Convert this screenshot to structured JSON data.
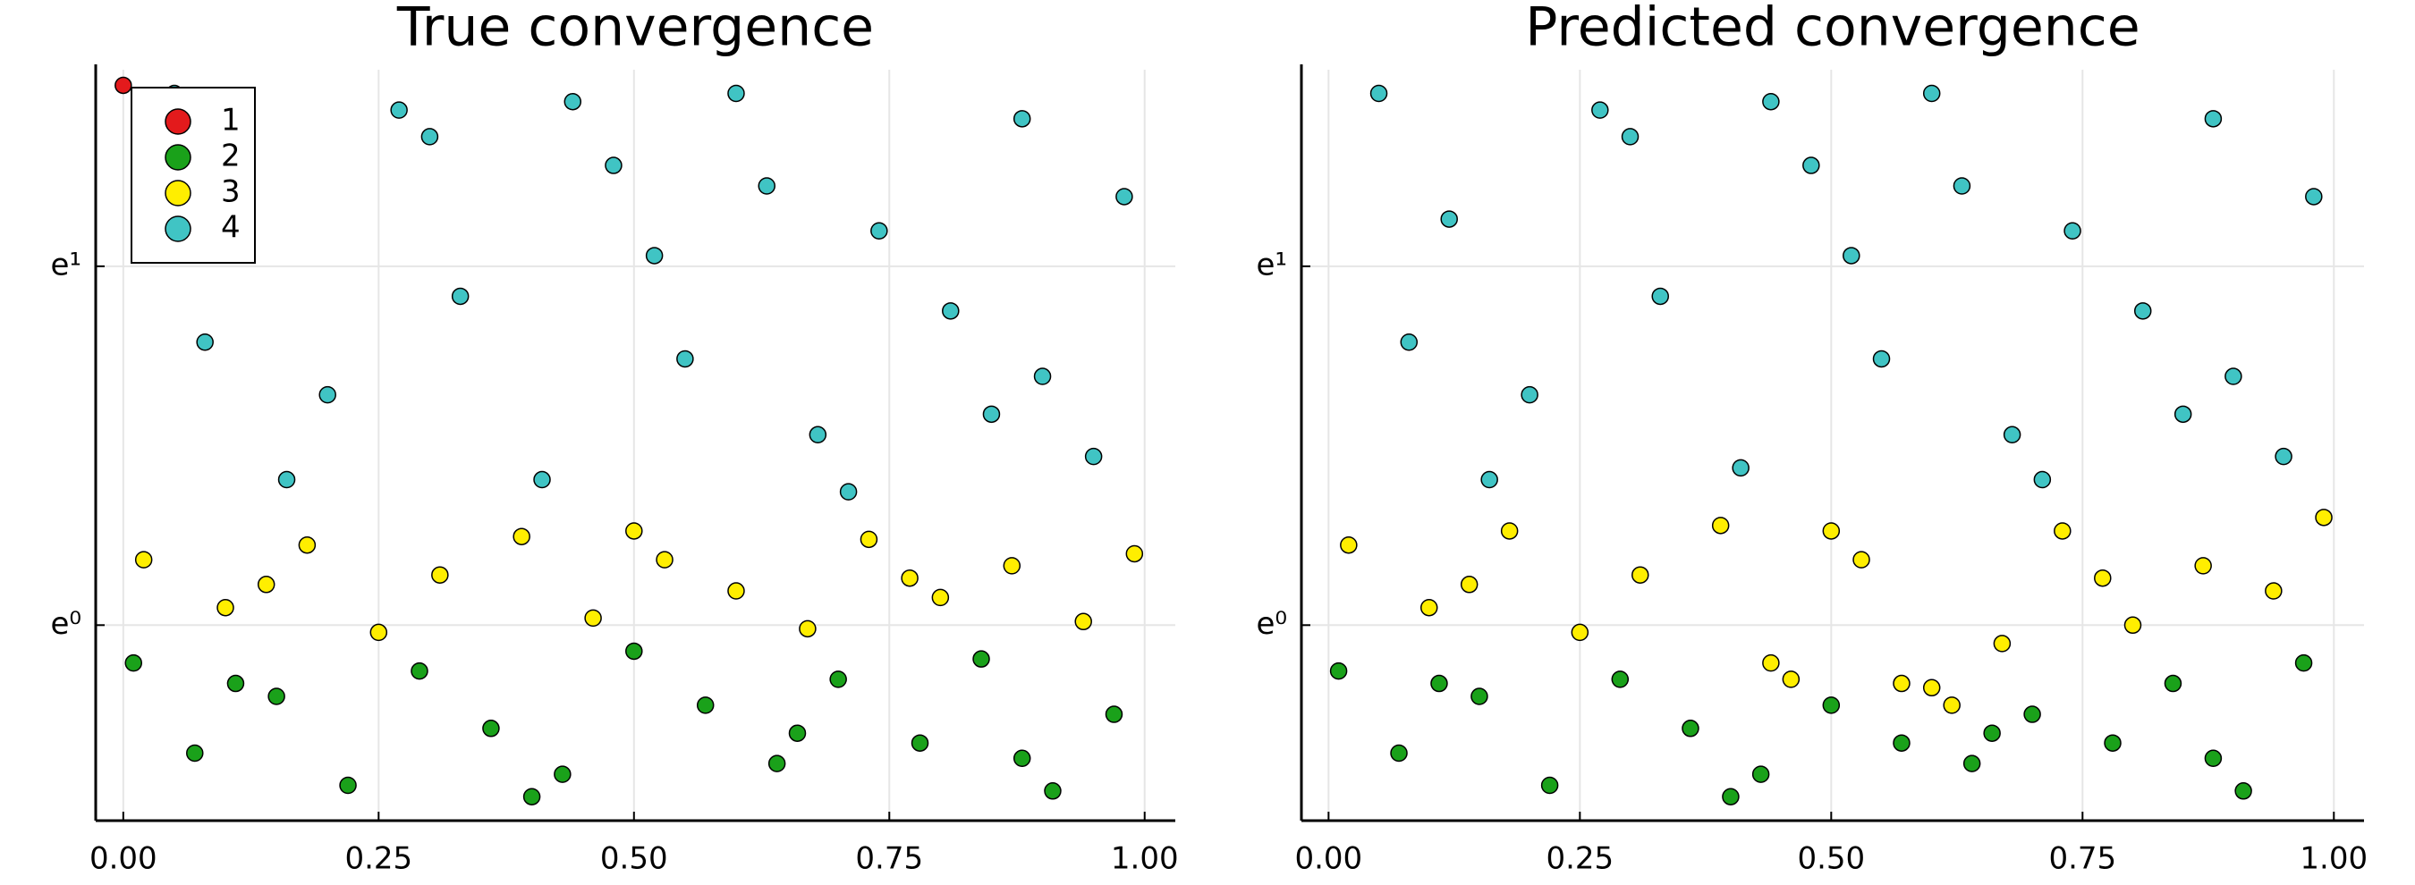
{
  "chart_data": [
    {
      "type": "scatter",
      "title": "True convergence",
      "yscale": "log",
      "grid": true,
      "legend": "top left",
      "xlim": [
        -0.027,
        1.03
      ],
      "ylim": [
        0.58,
        4.7
      ],
      "xticks": [
        {
          "value": 0,
          "label": "0.00"
        },
        {
          "value": 0.25,
          "label": "0.25"
        },
        {
          "value": 0.5,
          "label": "0.50"
        },
        {
          "value": 0.75,
          "label": "0.75"
        },
        {
          "value": 1,
          "label": "1.00"
        }
      ],
      "yticks": [
        {
          "value": 1,
          "label": "e⁰"
        },
        {
          "value": 2.718,
          "label": "e¹"
        }
      ],
      "series": [
        {
          "name": "1",
          "color": "#e31a1c",
          "x": [
            0.0
          ],
          "y": [
            4.5
          ]
        },
        {
          "name": "2",
          "color": "#1aa11a",
          "x": [
            0.01,
            0.07,
            0.15,
            0.22,
            0.29,
            0.36,
            0.43,
            0.5,
            0.57,
            0.64,
            0.7,
            0.78,
            0.84,
            0.91,
            0.97,
            0.11,
            0.4,
            0.66,
            0.88
          ],
          "y": [
            0.9,
            0.7,
            0.82,
            0.64,
            0.88,
            0.75,
            0.66,
            0.93,
            0.8,
            0.68,
            0.86,
            0.72,
            0.91,
            0.63,
            0.78,
            0.85,
            0.62,
            0.74,
            0.69
          ]
        },
        {
          "name": "3",
          "color": "#ffee00",
          "x": [
            0.02,
            0.1,
            0.18,
            0.25,
            0.31,
            0.39,
            0.46,
            0.53,
            0.6,
            0.67,
            0.73,
            0.8,
            0.87,
            0.94,
            0.99,
            0.14,
            0.5,
            0.77
          ],
          "y": [
            1.2,
            1.05,
            1.25,
            0.98,
            1.15,
            1.28,
            1.02,
            1.2,
            1.1,
            0.99,
            1.27,
            1.08,
            1.18,
            1.01,
            1.22,
            1.12,
            1.3,
            1.14
          ]
        },
        {
          "name": "4",
          "color": "#40c4c4",
          "x": [
            0.05,
            0.12,
            0.2,
            0.27,
            0.33,
            0.41,
            0.48,
            0.55,
            0.6,
            0.68,
            0.74,
            0.81,
            0.88,
            0.95,
            0.98,
            0.08,
            0.3,
            0.52,
            0.71,
            0.9,
            0.16,
            0.44,
            0.63,
            0.85
          ],
          "y": [
            4.4,
            3.1,
            1.9,
            4.2,
            2.5,
            1.5,
            3.6,
            2.1,
            4.4,
            1.7,
            3.0,
            2.4,
            4.1,
            1.6,
            3.3,
            2.2,
            3.9,
            2.8,
            1.45,
            2.0,
            1.5,
            4.3,
            3.4,
            1.8
          ]
        }
      ]
    },
    {
      "type": "scatter",
      "title": "Predicted convergence",
      "yscale": "log",
      "grid": true,
      "xlim": [
        -0.027,
        1.03
      ],
      "ylim": [
        0.58,
        4.7
      ],
      "xticks": [
        {
          "value": 0,
          "label": "0.00"
        },
        {
          "value": 0.25,
          "label": "0.25"
        },
        {
          "value": 0.5,
          "label": "0.50"
        },
        {
          "value": 0.75,
          "label": "0.75"
        },
        {
          "value": 1,
          "label": "1.00"
        }
      ],
      "yticks": [
        {
          "value": 1,
          "label": "e⁰"
        },
        {
          "value": 2.718,
          "label": "e¹"
        }
      ],
      "series": [
        {
          "color": "#1aa11a",
          "x": [
            0.01,
            0.07,
            0.15,
            0.22,
            0.29,
            0.36,
            0.43,
            0.5,
            0.57,
            0.64,
            0.7,
            0.78,
            0.84,
            0.91,
            0.97,
            0.11,
            0.4,
            0.66,
            0.88
          ],
          "y": [
            0.88,
            0.7,
            0.82,
            0.64,
            0.86,
            0.75,
            0.66,
            0.8,
            0.72,
            0.68,
            0.78,
            0.72,
            0.85,
            0.63,
            0.9,
            0.85,
            0.62,
            0.74,
            0.69
          ]
        },
        {
          "color": "#ffee00",
          "x": [
            0.02,
            0.1,
            0.18,
            0.25,
            0.31,
            0.39,
            0.46,
            0.53,
            0.6,
            0.67,
            0.73,
            0.8,
            0.87,
            0.94,
            0.99,
            0.14,
            0.5,
            0.57,
            0.62,
            0.77,
            0.44
          ],
          "y": [
            1.25,
            1.05,
            1.3,
            0.98,
            1.15,
            1.32,
            0.86,
            1.2,
            0.84,
            0.95,
            1.3,
            1.0,
            1.18,
            1.1,
            1.35,
            1.12,
            1.3,
            0.85,
            0.8,
            1.14,
            0.9
          ]
        },
        {
          "color": "#40c4c4",
          "x": [
            0.05,
            0.12,
            0.2,
            0.27,
            0.33,
            0.41,
            0.48,
            0.55,
            0.6,
            0.68,
            0.74,
            0.81,
            0.88,
            0.95,
            0.98,
            0.08,
            0.3,
            0.52,
            0.71,
            0.9,
            0.16,
            0.44,
            0.63,
            0.85
          ],
          "y": [
            4.4,
            3.1,
            1.9,
            4.2,
            2.5,
            1.55,
            3.6,
            2.1,
            4.4,
            1.7,
            3.0,
            2.4,
            4.1,
            1.6,
            3.3,
            2.2,
            3.9,
            2.8,
            1.5,
            2.0,
            1.5,
            4.3,
            3.4,
            1.8
          ]
        }
      ]
    }
  ]
}
